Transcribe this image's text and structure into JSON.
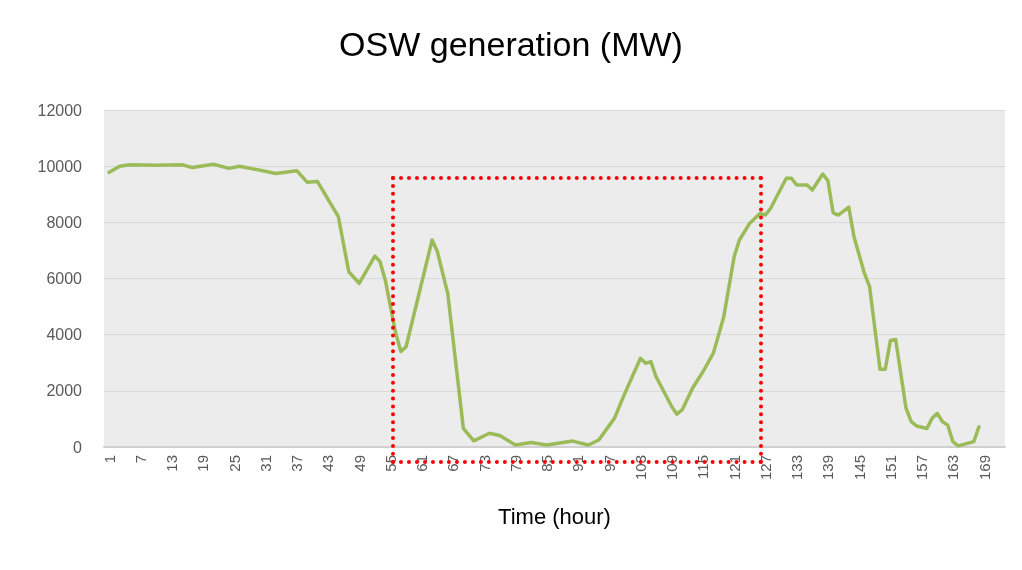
{
  "chart_data": {
    "type": "line",
    "title": "OSW generation (MW)",
    "xlabel": "Time (hour)",
    "x": [
      1,
      3,
      5,
      10,
      15,
      17,
      21,
      24,
      26,
      33,
      37,
      39,
      41,
      45,
      47,
      49,
      52,
      53,
      54,
      56,
      57,
      58,
      63,
      64,
      66,
      69,
      71,
      74,
      76,
      79,
      82,
      85,
      90,
      93,
      95,
      98,
      100,
      103,
      104,
      105,
      106,
      109,
      110,
      111,
      113,
      115,
      117,
      119,
      121,
      122,
      124,
      126,
      127,
      128,
      131,
      132,
      133,
      135,
      136,
      138,
      139,
      140,
      141,
      143,
      144,
      146,
      147,
      149,
      150,
      151,
      152,
      154,
      155,
      156,
      158,
      159,
      160,
      161,
      162,
      163,
      164,
      167,
      168
    ],
    "series": [
      {
        "color": "#9bbb59",
        "values": [
          9780,
          10000,
          10050,
          10030,
          10050,
          9950,
          10070,
          9920,
          10000,
          9740,
          9840,
          9430,
          9450,
          8200,
          6240,
          5830,
          6800,
          6600,
          5950,
          4060,
          3400,
          3570,
          7370,
          6960,
          5470,
          660,
          220,
          490,
          410,
          70,
          160,
          70,
          210,
          70,
          250,
          1020,
          1910,
          3160,
          2980,
          3040,
          2500,
          1440,
          1170,
          1320,
          2090,
          2680,
          3340,
          4640,
          6780,
          7370,
          7970,
          8320,
          8260,
          8500,
          9570,
          9570,
          9330,
          9330,
          9150,
          9720,
          9480,
          8340,
          8260,
          8540,
          7490,
          6190,
          5710,
          2770,
          2770,
          3790,
          3830,
          1380,
          900,
          750,
          660,
          1020,
          1200,
          900,
          780,
          190,
          40,
          190,
          720
        ]
      }
    ],
    "xlim": [
      0,
      173
    ],
    "xticks": [
      1,
      7,
      13,
      19,
      25,
      31,
      37,
      43,
      49,
      55,
      61,
      67,
      73,
      79,
      85,
      91,
      97,
      103,
      109,
      115,
      121,
      127,
      133,
      139,
      145,
      151,
      157,
      163,
      169
    ],
    "ylim": [
      0,
      12000
    ],
    "yticks": [
      0,
      2000,
      4000,
      6000,
      8000,
      10000,
      12000
    ],
    "grid": "y",
    "marker": "none",
    "line_style": "solid"
  }
}
